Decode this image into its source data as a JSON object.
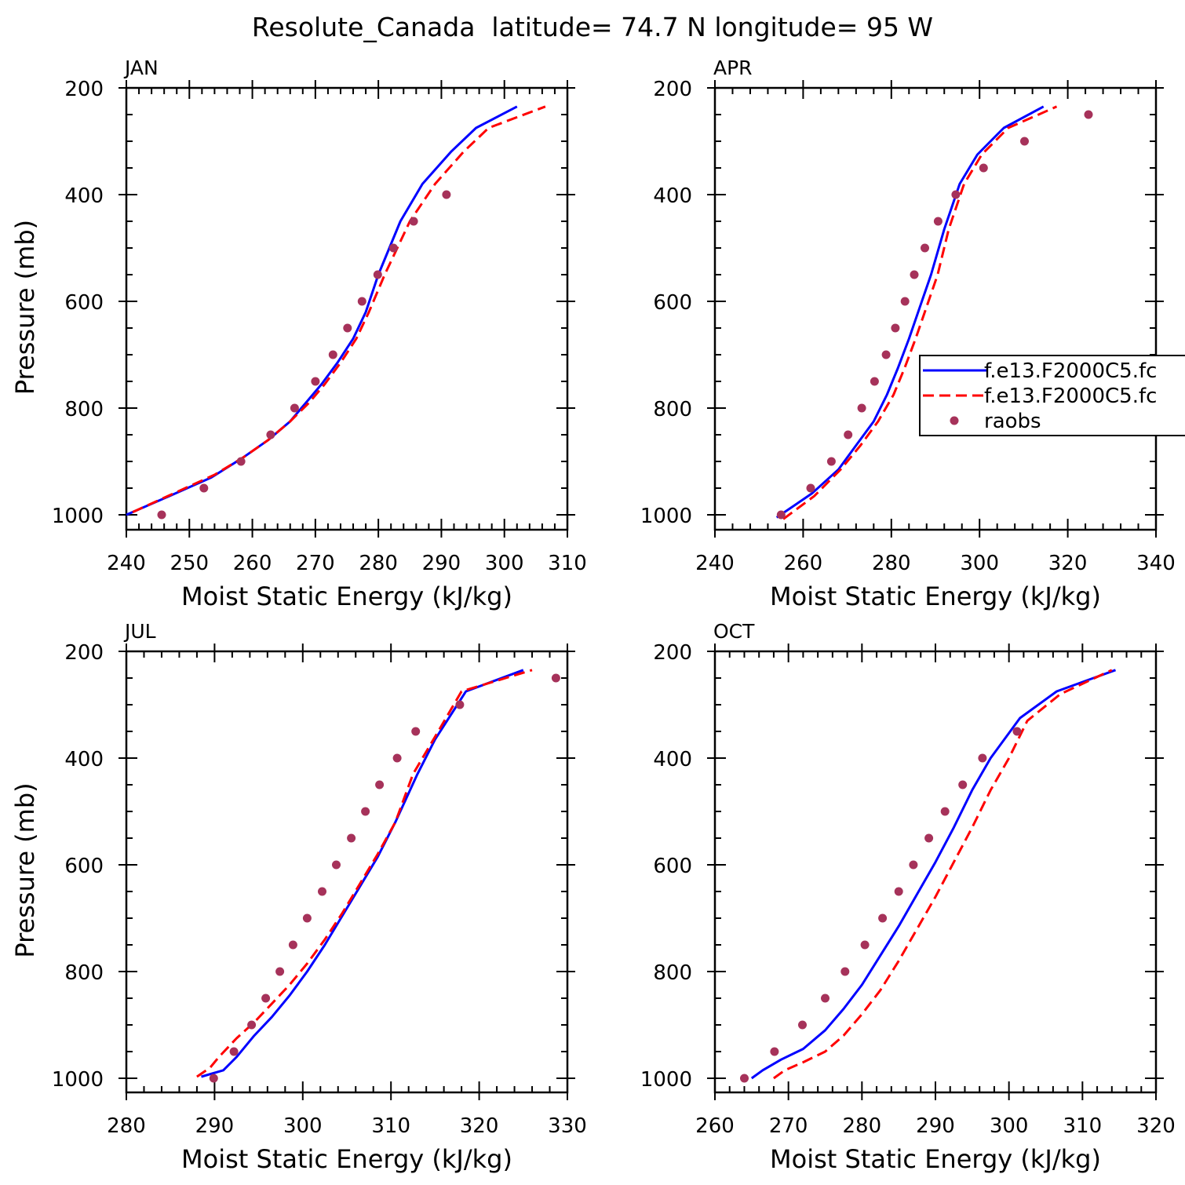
{
  "figure": {
    "title": "Resolute_Canada  latitude= 74.7 N longitude= 95 W"
  },
  "series_styles": [
    {
      "name": "f.e13.F2000C5.fc",
      "color": "#0000ff",
      "style": "solid"
    },
    {
      "name": "f.e13.F2000C5.fc",
      "color": "#ff0000",
      "style": "dashed"
    },
    {
      "name": "raobs",
      "color": "#a6325a",
      "style": "dots"
    }
  ],
  "legend": {
    "placement": "right-middle of APR panel",
    "entries": [
      "f.e13.F2000C5.fc",
      "f.e13.F2000C5.fc",
      "raobs"
    ]
  },
  "chart_data": [
    {
      "type": "line",
      "title": "JAN",
      "xlabel": "Moist Static Energy (kJ/kg)",
      "ylabel": "Pressure (mb)",
      "xlim": [
        240,
        310
      ],
      "ylim": [
        1000,
        200
      ],
      "xticks": [
        240,
        250,
        260,
        270,
        280,
        290,
        300,
        310
      ],
      "yticks": [
        200,
        400,
        600,
        800,
        1000
      ],
      "series": [
        {
          "name": "f.e13.F2000C5.fc",
          "color": "#0000ff",
          "style": "solid",
          "x": [
            240.0,
            246.8,
            253.5,
            258.5,
            262.5,
            266.0,
            268.5,
            271.0,
            273.5,
            276.0,
            278.0,
            280.0,
            283.5,
            287.0,
            291.5,
            295.5,
            302.0
          ],
          "y": [
            1000,
            965,
            930,
            893,
            860,
            825,
            790,
            755,
            715,
            670,
            620,
            550,
            450,
            380,
            320,
            275,
            235
          ]
        },
        {
          "name": "f.e13.F2000C5.fc",
          "color": "#ff0000",
          "style": "dashed",
          "x": [
            241.0,
            247.5,
            254.0,
            258.5,
            262.5,
            266.0,
            269.0,
            271.5,
            274.0,
            276.5,
            278.5,
            281.0,
            285.0,
            289.0,
            293.5,
            297.5,
            306.5
          ],
          "y": [
            995,
            960,
            925,
            893,
            860,
            825,
            790,
            755,
            715,
            670,
            620,
            550,
            450,
            380,
            320,
            275,
            235
          ]
        }
      ],
      "points": [
        {
          "name": "raobs",
          "color": "#a6325a",
          "x": [
            245.6,
            252.3,
            258.2,
            262.9,
            266.7,
            270.0,
            272.8,
            275.1,
            277.4,
            279.9,
            282.4,
            285.6,
            290.8
          ],
          "y": [
            1000,
            950,
            900,
            850,
            800,
            750,
            700,
            650,
            600,
            550,
            500,
            450,
            400
          ]
        }
      ]
    },
    {
      "type": "line",
      "title": "APR",
      "xlabel": "Moist Static Energy (kJ/kg)",
      "ylabel": "",
      "xlim": [
        240,
        340
      ],
      "ylim": [
        1000,
        200
      ],
      "xticks": [
        240,
        260,
        280,
        300,
        320,
        340
      ],
      "yticks": [
        200,
        400,
        600,
        800,
        1000
      ],
      "series": [
        {
          "name": "f.e13.F2000C5.fc",
          "color": "#0000ff",
          "style": "solid",
          "x": [
            254.0,
            262.0,
            268.0,
            272.0,
            276.0,
            279.0,
            281.5,
            284.0,
            286.5,
            289.0,
            292.0,
            295.5,
            299.5,
            305.5,
            314.5
          ],
          "y": [
            1005,
            960,
            915,
            870,
            825,
            775,
            725,
            670,
            610,
            550,
            465,
            380,
            325,
            275,
            235
          ]
        },
        {
          "name": "f.e13.F2000C5.fc",
          "color": "#ff0000",
          "style": "dashed",
          "x": [
            255.5,
            262.5,
            268.5,
            273.0,
            277.0,
            280.5,
            283.0,
            285.5,
            288.0,
            290.5,
            293.0,
            296.5,
            300.5,
            306.5,
            317.5
          ],
          "y": [
            1008,
            965,
            915,
            870,
            825,
            775,
            725,
            670,
            610,
            550,
            465,
            380,
            325,
            275,
            235
          ]
        }
      ],
      "points": [
        {
          "name": "raobs",
          "color": "#a6325a",
          "x": [
            255.0,
            261.7,
            266.4,
            270.2,
            273.3,
            276.2,
            278.8,
            280.9,
            283.1,
            285.2,
            287.6,
            290.6,
            294.6,
            300.9,
            310.2,
            324.7
          ],
          "y": [
            1000,
            950,
            900,
            850,
            800,
            750,
            700,
            650,
            600,
            550,
            500,
            450,
            400,
            350,
            300,
            250
          ]
        }
      ]
    },
    {
      "type": "line",
      "title": "JUL",
      "xlabel": "Moist Static Energy (kJ/kg)",
      "ylabel": "Pressure (mb)",
      "xlim": [
        280,
        330
      ],
      "ylim": [
        1000,
        200
      ],
      "xticks": [
        280,
        290,
        300,
        310,
        320,
        330
      ],
      "yticks": [
        200,
        400,
        600,
        800,
        1000
      ],
      "series": [
        {
          "name": "f.e13.F2000C5.fc",
          "color": "#0000ff",
          "style": "solid",
          "x": [
            288.5,
            291.0,
            292.5,
            294.5,
            296.5,
            298.5,
            300.5,
            302.5,
            304.5,
            306.5,
            308.5,
            310.5,
            313.0,
            315.0,
            318.5,
            325.0
          ],
          "y": [
            997,
            985,
            960,
            920,
            885,
            845,
            800,
            750,
            695,
            640,
            585,
            520,
            430,
            365,
            275,
            235
          ]
        },
        {
          "name": "f.e13.F2000C5.fc",
          "color": "#ff0000",
          "style": "dashed",
          "x": [
            288.0,
            289.5,
            290.5,
            292.5,
            294.5,
            296.5,
            298.5,
            300.5,
            302.5,
            304.5,
            306.5,
            308.5,
            310.5,
            312.5,
            315.0,
            318.0,
            326.0
          ],
          "y": [
            997,
            980,
            960,
            925,
            895,
            860,
            825,
            785,
            740,
            690,
            635,
            580,
            520,
            430,
            360,
            275,
            235
          ]
        }
      ],
      "points": [
        {
          "name": "raobs",
          "color": "#a6325a",
          "x": [
            289.9,
            292.2,
            294.2,
            295.8,
            297.4,
            298.9,
            300.5,
            302.2,
            303.8,
            305.5,
            307.1,
            308.7,
            310.7,
            312.8,
            317.8,
            328.7
          ],
          "y": [
            1000,
            950,
            900,
            850,
            800,
            750,
            700,
            650,
            600,
            550,
            500,
            450,
            400,
            350,
            300,
            250
          ]
        }
      ]
    },
    {
      "type": "line",
      "title": "OCT",
      "xlabel": "Moist Static Energy (kJ/kg)",
      "ylabel": "",
      "xlim": [
        260,
        320
      ],
      "ylim": [
        1000,
        200
      ],
      "xticks": [
        260,
        270,
        280,
        290,
        300,
        310,
        320
      ],
      "yticks": [
        200,
        400,
        600,
        800,
        1000
      ],
      "series": [
        {
          "name": "f.e13.F2000C5.fc",
          "color": "#0000ff",
          "style": "solid",
          "x": [
            265.0,
            266.5,
            269.0,
            272.0,
            275.0,
            277.5,
            280.0,
            282.5,
            285.0,
            287.5,
            290.0,
            292.5,
            295.0,
            297.5,
            301.5,
            306.5,
            314.5
          ],
          "y": [
            1000,
            985,
            965,
            945,
            910,
            870,
            825,
            770,
            715,
            655,
            595,
            530,
            460,
            400,
            325,
            275,
            235
          ]
        },
        {
          "name": "f.e13.F2000C5.fc",
          "color": "#ff0000",
          "style": "dashed",
          "x": [
            268.0,
            269.5,
            272.0,
            275.0,
            277.5,
            280.0,
            282.5,
            285.0,
            287.5,
            290.0,
            292.5,
            295.0,
            297.5,
            300.0,
            302.5,
            307.0,
            314.0
          ],
          "y": [
            1000,
            985,
            970,
            950,
            920,
            880,
            835,
            780,
            720,
            660,
            595,
            530,
            460,
            400,
            330,
            280,
            235
          ]
        }
      ],
      "points": [
        {
          "name": "raobs",
          "color": "#a6325a",
          "x": [
            264.0,
            268.1,
            271.9,
            275.0,
            277.7,
            280.4,
            282.8,
            285.0,
            287.0,
            289.1,
            291.3,
            293.7,
            296.4,
            301.1
          ],
          "y": [
            1000,
            950,
            900,
            850,
            800,
            750,
            700,
            650,
            600,
            550,
            500,
            450,
            400,
            350
          ]
        }
      ]
    }
  ]
}
